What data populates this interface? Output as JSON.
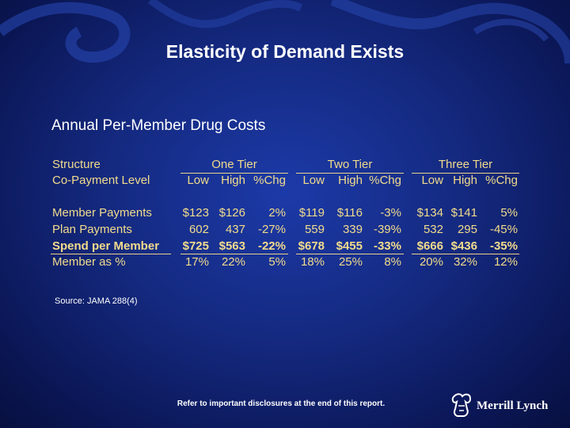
{
  "slide": {
    "title": "Elasticity of Demand Exists",
    "subtitle": "Annual Per-Member Drug Costs",
    "source": "Source: JAMA 288(4)",
    "footer": "Refer to important disclosures at the end of this report.",
    "logo_text": "Merrill Lynch",
    "text_color": "#f2dc8c"
  },
  "table": {
    "structure_label": "Structure",
    "copay_label": "Co-Payment Level",
    "tiers": [
      "One Tier",
      "Two Tier",
      "Three Tier"
    ],
    "subheaders": [
      "Low",
      "High",
      "%Chg",
      "Low",
      "High",
      "%Chg",
      "Low",
      "High",
      "%Chg"
    ],
    "rows": [
      {
        "label": "Member Payments",
        "bold": false,
        "values": [
          "$123",
          "$126",
          "2%",
          "$119",
          "$116",
          "-3%",
          "$134",
          "$141",
          "5%"
        ]
      },
      {
        "label": "Plan Payments",
        "bold": false,
        "values": [
          "602",
          "437",
          "-27%",
          "559",
          "339",
          "-39%",
          "532",
          "295",
          "-45%"
        ]
      },
      {
        "label": "Spend per Member",
        "bold": true,
        "values": [
          "$725",
          "$563",
          "-22%",
          "$678",
          "$455",
          "-33%",
          "$666",
          "$436",
          "-35%"
        ]
      },
      {
        "label": "Member as %",
        "bold": false,
        "values": [
          "17%",
          "22%",
          "5%",
          "18%",
          "25%",
          "8%",
          "20%",
          "32%",
          "12%"
        ]
      }
    ]
  }
}
